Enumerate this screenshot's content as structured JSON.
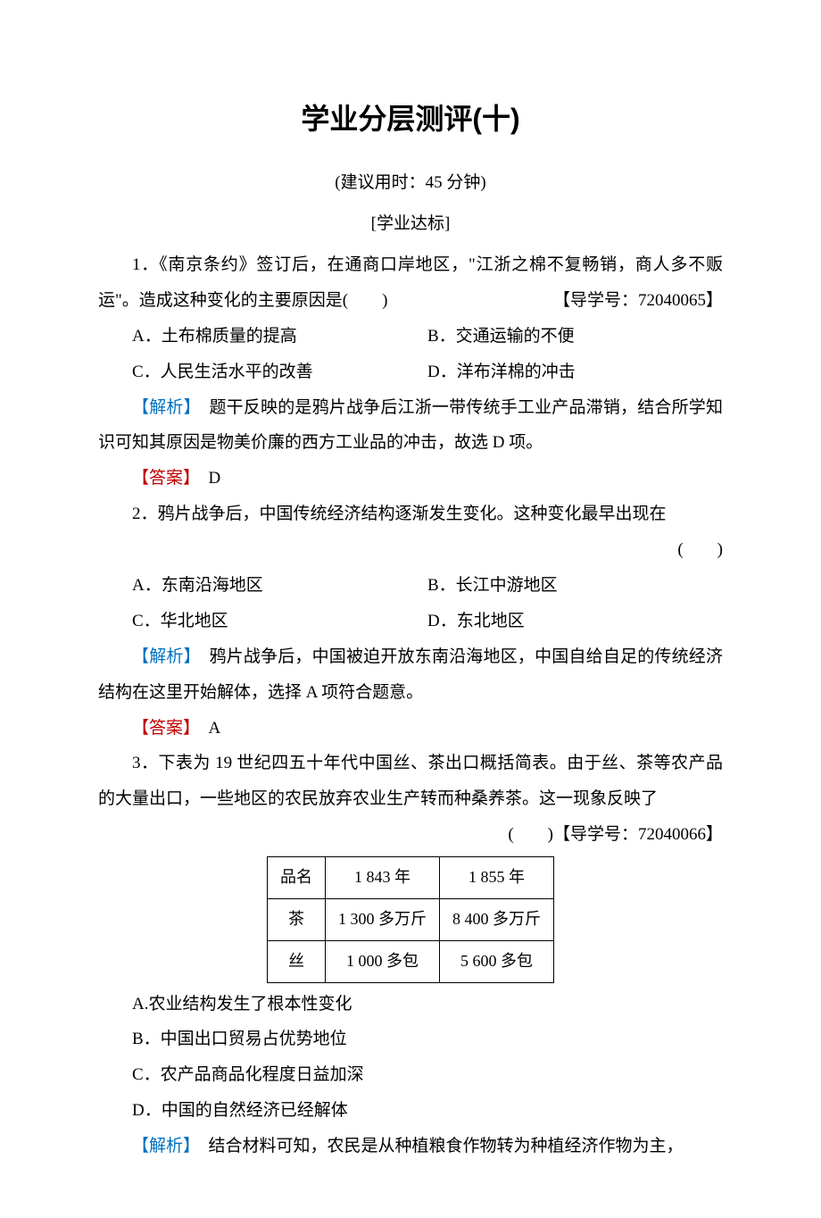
{
  "title": "学业分层测评(十)",
  "subtitle": "(建议用时：45 分钟)",
  "section_label": "[学业达标]",
  "analysis_label": "【解析】",
  "answer_label": "【答案】",
  "paren_blank": "(　　)",
  "q1": {
    "stem_a": "1．《南京条约》签订后，在通商口岸地区，\"江浙之棉不复畅销，商人多不贩运\"。造成这种变化的主要原因是(　　) ",
    "guide": "【导学号：72040065】",
    "optA": "A．土布棉质量的提高",
    "optB": "B．交通运输的不便",
    "optC": "C．人民生活水平的改善",
    "optD": "D．洋布洋棉的冲击",
    "analysis": "　题干反映的是鸦片战争后江浙一带传统手工业产品滞销，结合所学知识可知其原因是物美价廉的西方工业品的冲击，故选 D 项。",
    "answer": "　D"
  },
  "q2": {
    "stem": "2．鸦片战争后，中国传统经济结构逐渐发生变化。这种变化最早出现在",
    "optA": "A．东南沿海地区",
    "optB": "B．长江中游地区",
    "optC": "C．华北地区",
    "optD": "D．东北地区",
    "analysis": "　鸦片战争后，中国被迫开放东南沿海地区，中国自给自足的传统经济结构在这里开始解体，选择 A 项符合题意。",
    "answer": "　A"
  },
  "q3": {
    "stem": "3．下表为 19 世纪四五十年代中国丝、茶出口概括简表。由于丝、茶等农产品的大量出口，一些地区的农民放弃农业生产转而种桑养茶。这一现象反映了",
    "guide": "【导学号：72040066】",
    "table": {
      "columns": [
        "品名",
        "1 843 年",
        "1 855 年"
      ],
      "rows": [
        [
          "茶",
          "1 300 多万斤",
          "8 400 多万斤"
        ],
        [
          "丝",
          "1 000 多包",
          "5 600 多包"
        ]
      ]
    },
    "optA": "A.农业结构发生了根本性变化",
    "optB": "B．中国出口贸易占优势地位",
    "optC": "C．农产品商品化程度日益加深",
    "optD": "D．中国的自然经济已经解体",
    "analysis": "　结合材料可知，农民是从种植粮食作物转为种植经济作物为主，"
  }
}
